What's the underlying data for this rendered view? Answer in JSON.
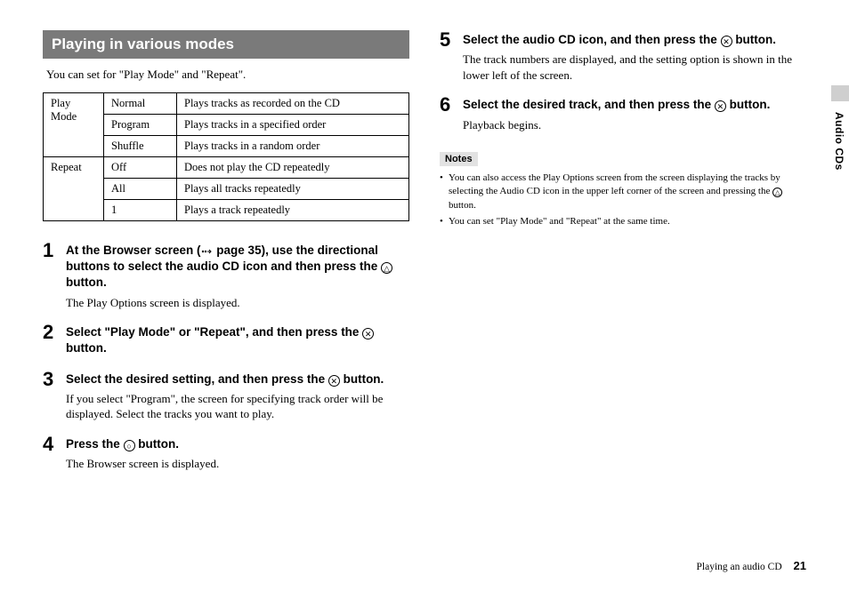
{
  "sectionHeading": "Playing in various modes",
  "intro": "You can set for \"Play Mode\" and \"Repeat\".",
  "table": {
    "rows": [
      [
        "Play Mode",
        "Normal",
        "Plays tracks as recorded on the CD"
      ],
      [
        "",
        "Program",
        "Plays tracks in a specified order"
      ],
      [
        "",
        "Shuffle",
        "Plays tracks in a random order"
      ],
      [
        "Repeat",
        "Off",
        "Does not play the CD repeatedly"
      ],
      [
        "",
        "All",
        "Plays all tracks repeatedly"
      ],
      [
        "",
        "1",
        "Plays a track repeatedly"
      ]
    ],
    "colWidths": [
      "68px",
      "82px",
      "auto"
    ],
    "rowspans": {
      "0,0": 3,
      "3,0": 3
    }
  },
  "steps": [
    {
      "num": "1",
      "head_segments": [
        {
          "t": "At the Browser screen ("
        },
        {
          "icon": "arrow"
        },
        {
          "t": " page 35), use the directional buttons to select the audio CD icon and then press the "
        },
        {
          "icon": "triangle"
        },
        {
          "t": " button."
        }
      ],
      "desc": "The Play Options screen is displayed."
    },
    {
      "num": "2",
      "head_segments": [
        {
          "t": "Select \"Play Mode\" or \"Repeat\", and then press the "
        },
        {
          "icon": "cross"
        },
        {
          "t": " button."
        }
      ]
    },
    {
      "num": "3",
      "head_segments": [
        {
          "t": "Select the desired setting, and then press the "
        },
        {
          "icon": "cross"
        },
        {
          "t": " button."
        }
      ],
      "desc": "If you select \"Program\", the screen for specifying track order will be displayed. Select the tracks you want to play."
    },
    {
      "num": "4",
      "head_segments": [
        {
          "t": "Press the "
        },
        {
          "icon": "circle"
        },
        {
          "t": " button."
        }
      ],
      "desc": "The Browser screen is displayed."
    }
  ],
  "steps_right": [
    {
      "num": "5",
      "head_segments": [
        {
          "t": "Select the audio CD icon, and then press the "
        },
        {
          "icon": "cross"
        },
        {
          "t": " button."
        }
      ],
      "desc": "The track numbers are displayed, and the setting option is shown in the lower left of the screen."
    },
    {
      "num": "6",
      "head_segments": [
        {
          "t": "Select the desired track, and then press the "
        },
        {
          "icon": "cross"
        },
        {
          "t": " button."
        }
      ],
      "desc": "Playback begins."
    }
  ],
  "notesLabel": "Notes",
  "notes": [
    {
      "segments": [
        {
          "t": "You can also access the Play Options screen from the screen displaying the tracks by selecting the Audio CD icon in the upper left corner of the screen and pressing the "
        },
        {
          "icon": "triangle_sm"
        },
        {
          "t": " button."
        }
      ]
    },
    {
      "segments": [
        {
          "t": "You can set \"Play Mode\" and \"Repeat\" at the same time."
        }
      ]
    }
  ],
  "sideLabel": "Audio CDs",
  "footer": {
    "text": "Playing an audio CD",
    "page": "21"
  },
  "icons": {
    "triangle": "△",
    "cross": "✕",
    "circle": "○"
  },
  "colors": {
    "headingBg": "#7a7a7a",
    "headingText": "#ffffff",
    "notesBg": "#e2e2e2",
    "tabBg": "#cfcfcf",
    "border": "#000000"
  }
}
